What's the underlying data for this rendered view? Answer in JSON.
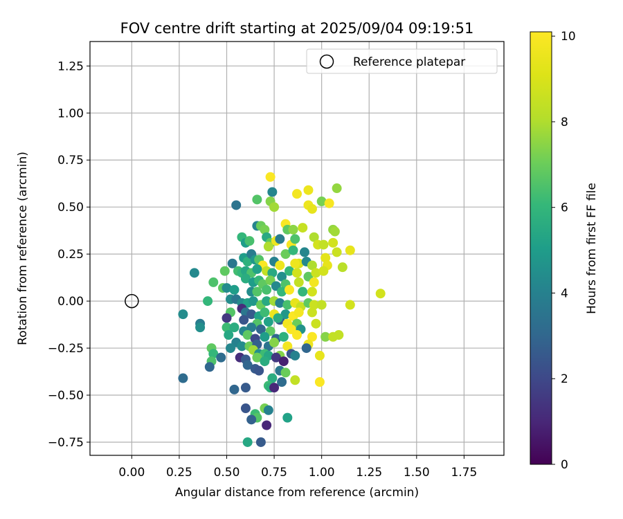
{
  "chart_data": {
    "type": "scatter",
    "title": "FOV centre drift starting at 2025/09/04 09:19:51",
    "xlabel": "Angular distance from reference (arcmin)",
    "ylabel": "Rotation from reference (arcmin)",
    "xlim": [
      -0.22,
      1.96
    ],
    "ylim": [
      -0.82,
      1.38
    ],
    "xticks": [
      0.0,
      0.25,
      0.5,
      0.75,
      1.0,
      1.25,
      1.5,
      1.75
    ],
    "xtick_labels": [
      "0.00",
      "0.25",
      "0.50",
      "0.75",
      "1.00",
      "1.25",
      "1.50",
      "1.75"
    ],
    "yticks": [
      -0.75,
      -0.5,
      -0.25,
      0.0,
      0.25,
      0.5,
      0.75,
      1.0,
      1.25
    ],
    "ytick_labels": [
      "−0.75",
      "−0.50",
      "−0.25",
      "0.00",
      "0.25",
      "0.50",
      "0.75",
      "1.00",
      "1.25"
    ],
    "grid": true,
    "legend": {
      "position": "top-right",
      "entries": [
        "Reference platepar"
      ]
    },
    "reference_point": {
      "x": 0.0,
      "y": 0.0,
      "marker": "open-circle",
      "label": "Reference platepar"
    },
    "colorbar": {
      "label": "Hours from first FF file",
      "colormap": "viridis",
      "range": [
        0,
        10.1
      ],
      "ticks": [
        0,
        2,
        4,
        6,
        8,
        10
      ],
      "tick_labels": [
        "0",
        "2",
        "4",
        "6",
        "8",
        "10"
      ]
    },
    "points": [
      {
        "x": 0.73,
        "y": 0.66,
        "c": 10.0
      },
      {
        "x": 0.93,
        "y": 0.59,
        "c": 9.6
      },
      {
        "x": 1.08,
        "y": 0.6,
        "c": 7.6
      },
      {
        "x": 0.87,
        "y": 0.57,
        "c": 9.8
      },
      {
        "x": 0.74,
        "y": 0.58,
        "c": 4.2
      },
      {
        "x": 0.66,
        "y": 0.54,
        "c": 6.6
      },
      {
        "x": 1.0,
        "y": 0.53,
        "c": 7.2
      },
      {
        "x": 1.04,
        "y": 0.52,
        "c": 9.9
      },
      {
        "x": 0.55,
        "y": 0.51,
        "c": 3.5
      },
      {
        "x": 0.73,
        "y": 0.53,
        "c": 7.4
      },
      {
        "x": 0.75,
        "y": 0.5,
        "c": 7.8
      },
      {
        "x": 0.93,
        "y": 0.51,
        "c": 9.6
      },
      {
        "x": 0.95,
        "y": 0.49,
        "c": 9.4
      },
      {
        "x": 0.66,
        "y": 0.4,
        "c": 4.1
      },
      {
        "x": 0.68,
        "y": 0.4,
        "c": 7.0
      },
      {
        "x": 0.7,
        "y": 0.38,
        "c": 7.2
      },
      {
        "x": 0.81,
        "y": 0.41,
        "c": 10.0
      },
      {
        "x": 0.82,
        "y": 0.38,
        "c": 6.8
      },
      {
        "x": 0.85,
        "y": 0.38,
        "c": 7.5
      },
      {
        "x": 0.9,
        "y": 0.39,
        "c": 8.5
      },
      {
        "x": 1.06,
        "y": 0.38,
        "c": 7.6
      },
      {
        "x": 1.07,
        "y": 0.37,
        "c": 7.8
      },
      {
        "x": 0.58,
        "y": 0.34,
        "c": 6.0
      },
      {
        "x": 0.6,
        "y": 0.31,
        "c": 5.0
      },
      {
        "x": 0.62,
        "y": 0.32,
        "c": 6.4
      },
      {
        "x": 0.71,
        "y": 0.34,
        "c": 5.5
      },
      {
        "x": 0.73,
        "y": 0.31,
        "c": 6.8
      },
      {
        "x": 0.76,
        "y": 0.32,
        "c": 9.6
      },
      {
        "x": 0.78,
        "y": 0.33,
        "c": 3.8
      },
      {
        "x": 0.84,
        "y": 0.3,
        "c": 9.9
      },
      {
        "x": 0.86,
        "y": 0.33,
        "c": 6.5
      },
      {
        "x": 0.96,
        "y": 0.34,
        "c": 8.0
      },
      {
        "x": 0.98,
        "y": 0.3,
        "c": 8.8
      },
      {
        "x": 1.01,
        "y": 0.3,
        "c": 8.4
      },
      {
        "x": 1.06,
        "y": 0.31,
        "c": 8.8
      },
      {
        "x": 0.72,
        "y": 0.29,
        "c": 8.0
      },
      {
        "x": 0.81,
        "y": 0.25,
        "c": 7.0
      },
      {
        "x": 0.85,
        "y": 0.27,
        "c": 6.0
      },
      {
        "x": 0.91,
        "y": 0.26,
        "c": 4.2
      },
      {
        "x": 1.02,
        "y": 0.23,
        "c": 9.3
      },
      {
        "x": 1.08,
        "y": 0.26,
        "c": 8.6
      },
      {
        "x": 1.15,
        "y": 0.27,
        "c": 9.4
      },
      {
        "x": 0.53,
        "y": 0.2,
        "c": 3.6
      },
      {
        "x": 0.59,
        "y": 0.23,
        "c": 5.0
      },
      {
        "x": 0.61,
        "y": 0.21,
        "c": 5.8
      },
      {
        "x": 0.63,
        "y": 0.25,
        "c": 3.8
      },
      {
        "x": 0.65,
        "y": 0.22,
        "c": 4.8
      },
      {
        "x": 0.67,
        "y": 0.22,
        "c": 6.6
      },
      {
        "x": 0.75,
        "y": 0.21,
        "c": 4.0
      },
      {
        "x": 0.78,
        "y": 0.19,
        "c": 9.6
      },
      {
        "x": 0.88,
        "y": 0.2,
        "c": 9.0
      },
      {
        "x": 0.92,
        "y": 0.21,
        "c": 4.3
      },
      {
        "x": 0.95,
        "y": 0.19,
        "c": 8.0
      },
      {
        "x": 1.03,
        "y": 0.19,
        "c": 9.4
      },
      {
        "x": 1.11,
        "y": 0.18,
        "c": 8.2
      },
      {
        "x": 0.69,
        "y": 0.19,
        "c": 10.0
      },
      {
        "x": 0.49,
        "y": 0.16,
        "c": 6.8
      },
      {
        "x": 0.33,
        "y": 0.15,
        "c": 4.3
      },
      {
        "x": 0.56,
        "y": 0.16,
        "c": 6.3
      },
      {
        "x": 0.58,
        "y": 0.15,
        "c": 6.0
      },
      {
        "x": 0.6,
        "y": 0.16,
        "c": 5.4
      },
      {
        "x": 0.63,
        "y": 0.15,
        "c": 6.5
      },
      {
        "x": 0.66,
        "y": 0.17,
        "c": 5.2
      },
      {
        "x": 0.71,
        "y": 0.16,
        "c": 8.4
      },
      {
        "x": 0.74,
        "y": 0.15,
        "c": 5.5
      },
      {
        "x": 0.79,
        "y": 0.13,
        "c": 4.5
      },
      {
        "x": 0.83,
        "y": 0.16,
        "c": 6.0
      },
      {
        "x": 0.87,
        "y": 0.15,
        "c": 8.8
      },
      {
        "x": 0.93,
        "y": 0.13,
        "c": 6.8
      },
      {
        "x": 0.97,
        "y": 0.15,
        "c": 8.6
      },
      {
        "x": 1.01,
        "y": 0.16,
        "c": 8.8
      },
      {
        "x": 0.86,
        "y": 0.2,
        "c": 9.6
      },
      {
        "x": 0.6,
        "y": 0.12,
        "c": 5.6
      },
      {
        "x": 0.64,
        "y": 0.1,
        "c": 5.0
      },
      {
        "x": 0.67,
        "y": 0.11,
        "c": 6.0
      },
      {
        "x": 0.69,
        "y": 0.09,
        "c": 6.8
      },
      {
        "x": 0.73,
        "y": 0.11,
        "c": 7.2
      },
      {
        "x": 0.76,
        "y": 0.08,
        "c": 4.3
      },
      {
        "x": 0.81,
        "y": 0.09,
        "c": 6.5
      },
      {
        "x": 0.88,
        "y": 0.1,
        "c": 8.4
      },
      {
        "x": 0.96,
        "y": 0.1,
        "c": 9.8
      },
      {
        "x": 0.43,
        "y": 0.1,
        "c": 6.5
      },
      {
        "x": 0.48,
        "y": 0.07,
        "c": 6.8
      },
      {
        "x": 0.5,
        "y": 0.07,
        "c": 4.4
      },
      {
        "x": 0.54,
        "y": 0.06,
        "c": 5.0
      },
      {
        "x": 0.63,
        "y": 0.05,
        "c": 4.4
      },
      {
        "x": 0.66,
        "y": 0.05,
        "c": 6.6
      },
      {
        "x": 0.71,
        "y": 0.06,
        "c": 6.4
      },
      {
        "x": 0.79,
        "y": 0.05,
        "c": 6.0
      },
      {
        "x": 0.83,
        "y": 0.06,
        "c": 10.0
      },
      {
        "x": 0.9,
        "y": 0.05,
        "c": 6.0
      },
      {
        "x": 0.95,
        "y": 0.05,
        "c": 8.8
      },
      {
        "x": 0.4,
        "y": 0.0,
        "c": 6.0
      },
      {
        "x": 0.52,
        "y": 0.01,
        "c": 4.4
      },
      {
        "x": 0.55,
        "y": 0.01,
        "c": 3.6
      },
      {
        "x": 0.58,
        "y": -0.01,
        "c": 4.4
      },
      {
        "x": 0.61,
        "y": -0.01,
        "c": 5.2
      },
      {
        "x": 0.64,
        "y": 0.0,
        "c": 4.8
      },
      {
        "x": 0.68,
        "y": -0.02,
        "c": 7.0
      },
      {
        "x": 0.71,
        "y": 0.0,
        "c": 5.5
      },
      {
        "x": 0.75,
        "y": 0.0,
        "c": 7.8
      },
      {
        "x": 0.78,
        "y": -0.01,
        "c": 4.0
      },
      {
        "x": 0.82,
        "y": -0.02,
        "c": 6.4
      },
      {
        "x": 0.86,
        "y": -0.01,
        "c": 9.4
      },
      {
        "x": 0.89,
        "y": -0.03,
        "c": 8.5
      },
      {
        "x": 0.93,
        "y": -0.01,
        "c": 6.8
      },
      {
        "x": 0.96,
        "y": -0.02,
        "c": 8.6
      },
      {
        "x": 1.0,
        "y": -0.02,
        "c": 8.4
      },
      {
        "x": 1.15,
        "y": -0.02,
        "c": 8.8
      },
      {
        "x": 1.31,
        "y": 0.04,
        "c": 8.8
      },
      {
        "x": 0.27,
        "y": -0.07,
        "c": 4.4
      },
      {
        "x": 0.52,
        "y": -0.06,
        "c": 6.6
      },
      {
        "x": 0.58,
        "y": -0.04,
        "c": 1.2
      },
      {
        "x": 0.6,
        "y": -0.06,
        "c": 3.6
      },
      {
        "x": 0.63,
        "y": -0.07,
        "c": 2.6
      },
      {
        "x": 0.67,
        "y": -0.08,
        "c": 5.2
      },
      {
        "x": 0.7,
        "y": -0.06,
        "c": 6.2
      },
      {
        "x": 0.75,
        "y": -0.07,
        "c": 9.6
      },
      {
        "x": 0.78,
        "y": -0.1,
        "c": 2.6
      },
      {
        "x": 0.81,
        "y": -0.07,
        "c": 4.8
      },
      {
        "x": 0.85,
        "y": -0.08,
        "c": 10.0
      },
      {
        "x": 0.88,
        "y": -0.06,
        "c": 9.8
      },
      {
        "x": 0.95,
        "y": -0.06,
        "c": 8.6
      },
      {
        "x": 0.5,
        "y": -0.09,
        "c": 1.5
      },
      {
        "x": 0.59,
        "y": -0.1,
        "c": 2.4
      },
      {
        "x": 0.66,
        "y": -0.12,
        "c": 6.6
      },
      {
        "x": 0.72,
        "y": -0.11,
        "c": 5.2
      },
      {
        "x": 0.77,
        "y": -0.09,
        "c": 5.6
      },
      {
        "x": 0.82,
        "y": -0.12,
        "c": 9.8
      },
      {
        "x": 0.87,
        "y": -0.12,
        "c": 7.0
      },
      {
        "x": 0.97,
        "y": -0.12,
        "c": 8.6
      },
      {
        "x": 0.36,
        "y": -0.12,
        "c": 3.8
      },
      {
        "x": 0.36,
        "y": -0.14,
        "c": 4.5
      },
      {
        "x": 0.5,
        "y": -0.14,
        "c": 6.2
      },
      {
        "x": 0.54,
        "y": -0.14,
        "c": 5.6
      },
      {
        "x": 0.59,
        "y": -0.16,
        "c": 4.2
      },
      {
        "x": 0.63,
        "y": -0.14,
        "c": 3.8
      },
      {
        "x": 0.68,
        "y": -0.15,
        "c": 3.0
      },
      {
        "x": 0.73,
        "y": -0.16,
        "c": 6.8
      },
      {
        "x": 0.84,
        "y": -0.15,
        "c": 10.0
      },
      {
        "x": 0.89,
        "y": -0.15,
        "c": 4.6
      },
      {
        "x": 0.51,
        "y": -0.18,
        "c": 5.4
      },
      {
        "x": 0.61,
        "y": -0.18,
        "c": 6.8
      },
      {
        "x": 0.65,
        "y": -0.2,
        "c": 2.0
      },
      {
        "x": 0.7,
        "y": -0.19,
        "c": 5.0
      },
      {
        "x": 0.76,
        "y": -0.2,
        "c": 3.0
      },
      {
        "x": 0.8,
        "y": -0.19,
        "c": 5.8
      },
      {
        "x": 0.87,
        "y": -0.18,
        "c": 10.0
      },
      {
        "x": 0.95,
        "y": -0.19,
        "c": 10.0
      },
      {
        "x": 1.02,
        "y": -0.19,
        "c": 7.4
      },
      {
        "x": 1.06,
        "y": -0.19,
        "c": 8.4
      },
      {
        "x": 1.09,
        "y": -0.18,
        "c": 8.4
      },
      {
        "x": 0.55,
        "y": -0.22,
        "c": 4.0
      },
      {
        "x": 0.58,
        "y": -0.24,
        "c": 4.4
      },
      {
        "x": 0.62,
        "y": -0.24,
        "c": 7.0
      },
      {
        "x": 0.66,
        "y": -0.23,
        "c": 2.8
      },
      {
        "x": 0.72,
        "y": -0.24,
        "c": 3.5
      },
      {
        "x": 0.75,
        "y": -0.22,
        "c": 7.4
      },
      {
        "x": 0.82,
        "y": -0.24,
        "c": 9.8
      },
      {
        "x": 0.93,
        "y": -0.23,
        "c": 9.6
      },
      {
        "x": 0.42,
        "y": -0.25,
        "c": 6.8
      },
      {
        "x": 0.52,
        "y": -0.25,
        "c": 4.2
      },
      {
        "x": 0.64,
        "y": -0.26,
        "c": 7.8
      },
      {
        "x": 0.67,
        "y": -0.28,
        "c": 4.5
      },
      {
        "x": 0.7,
        "y": -0.28,
        "c": 6.2
      },
      {
        "x": 0.72,
        "y": -0.29,
        "c": 5.4
      },
      {
        "x": 0.78,
        "y": -0.29,
        "c": 7.4
      },
      {
        "x": 0.84,
        "y": -0.28,
        "c": 2.4
      },
      {
        "x": 0.92,
        "y": -0.25,
        "c": 3.0
      },
      {
        "x": 0.43,
        "y": -0.28,
        "c": 6.0
      },
      {
        "x": 0.57,
        "y": -0.3,
        "c": 1.2
      },
      {
        "x": 0.6,
        "y": -0.31,
        "c": 2.6
      },
      {
        "x": 0.66,
        "y": -0.3,
        "c": 7.0
      },
      {
        "x": 0.7,
        "y": -0.32,
        "c": 5.6
      },
      {
        "x": 0.76,
        "y": -0.3,
        "c": 1.5
      },
      {
        "x": 0.8,
        "y": -0.32,
        "c": 0.8
      },
      {
        "x": 0.86,
        "y": -0.29,
        "c": 4.0
      },
      {
        "x": 0.99,
        "y": -0.29,
        "c": 9.4
      },
      {
        "x": 0.42,
        "y": -0.32,
        "c": 6.5
      },
      {
        "x": 0.47,
        "y": -0.3,
        "c": 3.2
      },
      {
        "x": 0.61,
        "y": -0.34,
        "c": 3.0
      },
      {
        "x": 0.65,
        "y": -0.36,
        "c": 2.6
      },
      {
        "x": 0.67,
        "y": -0.37,
        "c": 2.4
      },
      {
        "x": 0.41,
        "y": -0.35,
        "c": 3.0
      },
      {
        "x": 0.78,
        "y": -0.37,
        "c": 3.6
      },
      {
        "x": 0.81,
        "y": -0.38,
        "c": 7.0
      },
      {
        "x": 0.27,
        "y": -0.41,
        "c": 3.2
      },
      {
        "x": 0.74,
        "y": -0.41,
        "c": 5.6
      },
      {
        "x": 0.79,
        "y": -0.43,
        "c": 3.2
      },
      {
        "x": 0.86,
        "y": -0.42,
        "c": 8.4
      },
      {
        "x": 0.99,
        "y": -0.43,
        "c": 10.0
      },
      {
        "x": 0.72,
        "y": -0.45,
        "c": 6.2
      },
      {
        "x": 0.6,
        "y": -0.46,
        "c": 2.6
      },
      {
        "x": 0.54,
        "y": -0.47,
        "c": 3.0
      },
      {
        "x": 0.73,
        "y": -0.46,
        "c": 5.8
      },
      {
        "x": 0.75,
        "y": -0.46,
        "c": 1.0
      },
      {
        "x": 0.6,
        "y": -0.57,
        "c": 2.4
      },
      {
        "x": 0.7,
        "y": -0.57,
        "c": 7.2
      },
      {
        "x": 0.72,
        "y": -0.58,
        "c": 4.0
      },
      {
        "x": 0.65,
        "y": -0.6,
        "c": 6.2
      },
      {
        "x": 0.66,
        "y": -0.62,
        "c": 6.6
      },
      {
        "x": 0.63,
        "y": -0.63,
        "c": 2.8
      },
      {
        "x": 0.82,
        "y": -0.62,
        "c": 5.2
      },
      {
        "x": 0.71,
        "y": -0.66,
        "c": 1.0
      },
      {
        "x": 0.61,
        "y": -0.75,
        "c": 5.4
      },
      {
        "x": 0.68,
        "y": -0.75,
        "c": 2.6
      }
    ]
  }
}
